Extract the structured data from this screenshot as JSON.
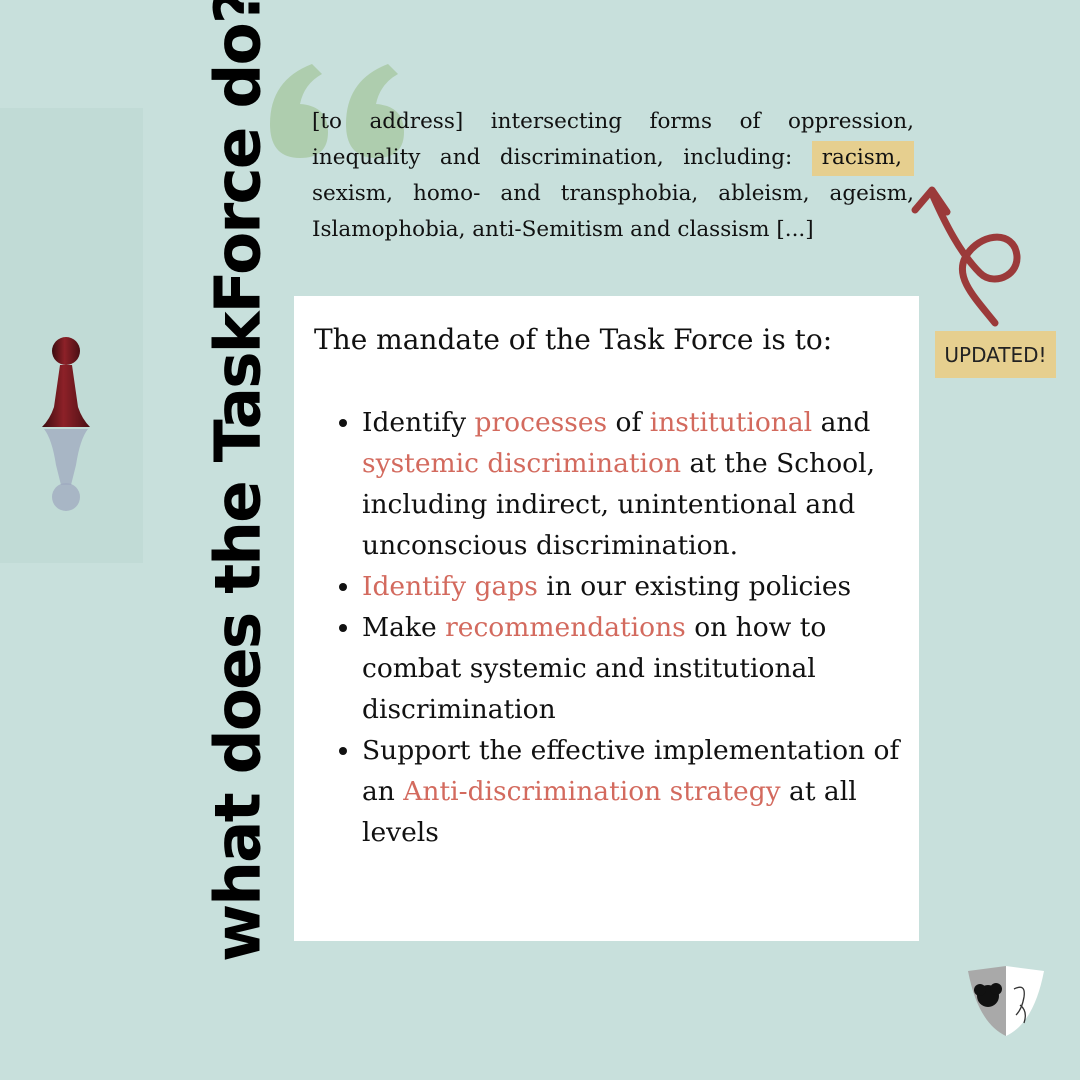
{
  "title": "what does the TaskForce do?",
  "quote": {
    "part1": "[to address] intersecting forms of oppression, inequality and discrimination, including: ",
    "highlight": "racism,",
    "part2": " sexism, homo- and transphobia, ableism, ageism, Islamophobia, anti-Semitism and classism [...]"
  },
  "badge": "UPDATED!",
  "mandate": {
    "intro": "The mandate of the Task Force is to:",
    "items": [
      {
        "t0": "Identify ",
        "a1": "processes",
        "t1": " of ",
        "a2": "institutional",
        "t2": " and ",
        "a3": "systemic discrimination",
        "t3": " at the School, including indirect, unintentional and unconscious discrimination."
      },
      {
        "a1": "Identify gaps",
        "t1": " in our existing policies"
      },
      {
        "t0": "Make ",
        "a1": "recommendations",
        "t1": " on how to combat systemic and institutional discrimination"
      },
      {
        "t0": "Support the effective implementation of an ",
        "a1": "Anti-discrimination strategy",
        "t1": " at all levels"
      }
    ]
  },
  "colors": {
    "background": "#c8e0dc",
    "accent": "#d36a5e",
    "highlight": "#e6cf8f",
    "arrow": "#9b3a3a",
    "quote_mark": "#a9c9a6"
  },
  "icons": [
    "pawn-icon",
    "quote-mark-icon",
    "curly-arrow-icon",
    "shield-logo-icon"
  ]
}
